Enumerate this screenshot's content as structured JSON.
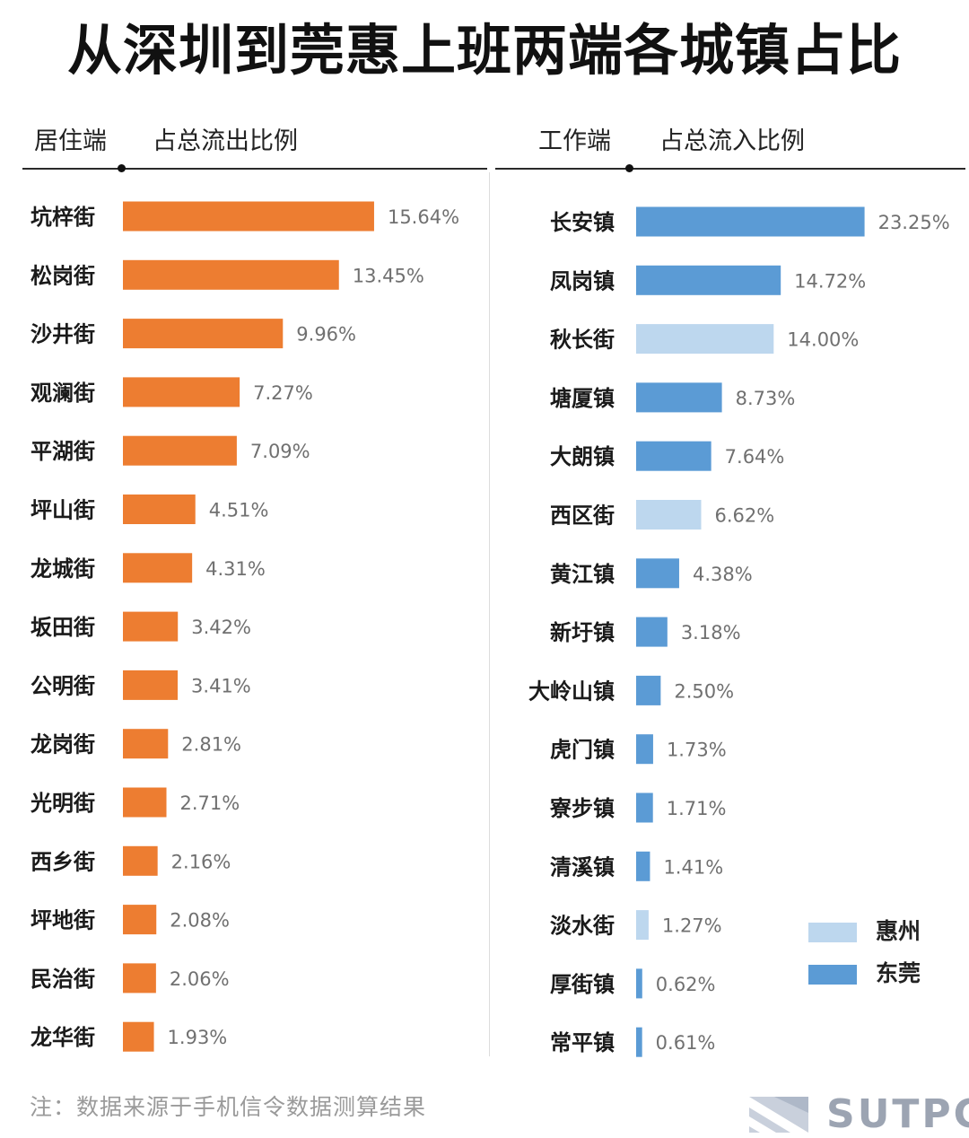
{
  "title": "从深圳到莞惠上班两端各城镇占比",
  "left_panel": {
    "end_label": "居住端",
    "ratio_label": "占总流出比例"
  },
  "right_panel": {
    "end_label": "工作端",
    "ratio_label": "占总流入比例"
  },
  "legend": [
    {
      "label": "惠州",
      "color": "#bdd7ee"
    },
    {
      "label": "东莞",
      "color": "#5b9bd5"
    }
  ],
  "note": "注：数据来源于手机信令数据测算结果",
  "logo": {
    "text": "SUTPC"
  },
  "colors": {
    "orange": "#ed7d31",
    "dongguan": "#5b9bd5",
    "huizhou": "#bdd7ee"
  },
  "chart_data": [
    {
      "type": "bar",
      "orientation": "horizontal",
      "title": "",
      "xlabel": "占总流出比例",
      "ylabel": "居住端",
      "categories": [
        "坑梓街",
        "松岗街",
        "沙井街",
        "观澜街",
        "平湖街",
        "坪山街",
        "龙城街",
        "坂田街",
        "公明街",
        "龙岗街",
        "光明街",
        "西乡街",
        "坪地街",
        "民治街",
        "龙华街"
      ],
      "values": [
        15.64,
        13.45,
        9.96,
        7.27,
        7.09,
        4.51,
        4.31,
        3.42,
        3.41,
        2.81,
        2.71,
        2.16,
        2.08,
        2.06,
        1.93
      ],
      "labels": [
        "15.64%",
        "13.45%",
        "9.96%",
        "7.27%",
        "7.09%",
        "4.51%",
        "4.31%",
        "3.42%",
        "3.41%",
        "2.81%",
        "2.71%",
        "2.16%",
        "2.08%",
        "2.06%",
        "1.93%"
      ],
      "unit": "%",
      "color": "#ed7d31",
      "grid": false
    },
    {
      "type": "bar",
      "orientation": "horizontal",
      "title": "",
      "xlabel": "占总流入比例",
      "ylabel": "工作端",
      "categories": [
        "长安镇",
        "凤岗镇",
        "秋长街",
        "塘厦镇",
        "大朗镇",
        "西区街",
        "黄江镇",
        "新圩镇",
        "大岭山镇",
        "虎门镇",
        "寮步镇",
        "清溪镇",
        "淡水街",
        "厚街镇",
        "常平镇"
      ],
      "values": [
        23.25,
        14.72,
        14.0,
        8.73,
        7.64,
        6.62,
        4.38,
        3.18,
        2.5,
        1.73,
        1.71,
        1.41,
        1.27,
        0.62,
        0.61
      ],
      "labels": [
        "23.25%",
        "14.72%",
        "14.00%",
        "8.73%",
        "7.64%",
        "6.62%",
        "4.38%",
        "3.18%",
        "2.50%",
        "1.73%",
        "1.71%",
        "1.41%",
        "1.27%",
        "0.62%",
        "0.61%"
      ],
      "groups": [
        "东莞",
        "东莞",
        "惠州",
        "东莞",
        "东莞",
        "惠州",
        "东莞",
        "东莞",
        "东莞",
        "东莞",
        "东莞",
        "东莞",
        "惠州",
        "东莞",
        "东莞"
      ],
      "unit": "%",
      "legend": "bottom-right",
      "grid": false
    }
  ]
}
